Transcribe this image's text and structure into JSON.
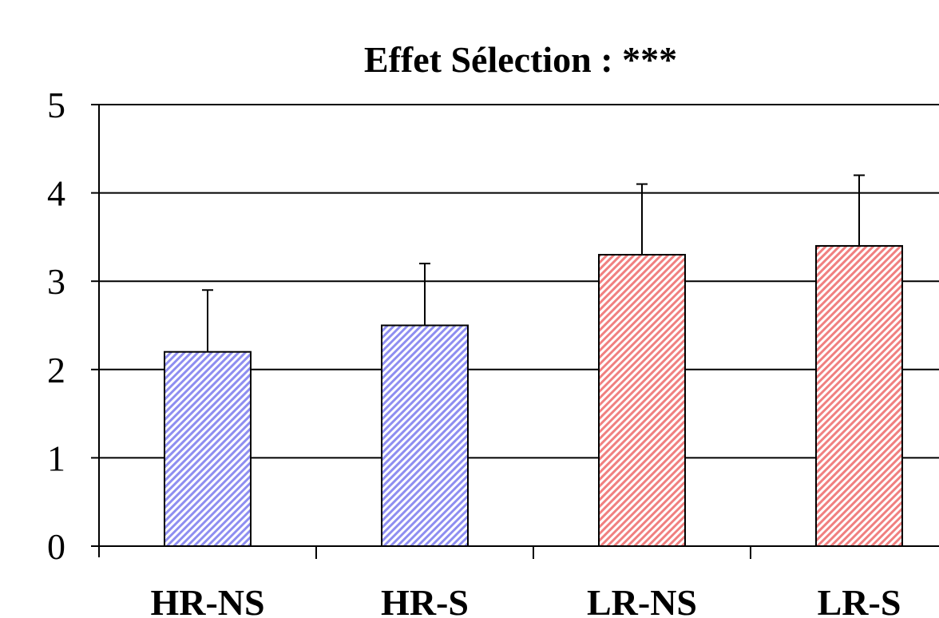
{
  "chart_data": {
    "type": "bar",
    "title": "Effet Sélection : ***",
    "xlabel": "",
    "ylabel": "",
    "categories": [
      "HR-NS",
      "HR-S",
      "LR-NS",
      "LR-S"
    ],
    "values": [
      2.2,
      2.5,
      3.3,
      3.4
    ],
    "error_plus": [
      0.7,
      0.7,
      0.8,
      0.8
    ],
    "ylim": [
      0,
      5
    ],
    "yticks": [
      "0",
      "1",
      "2",
      "3",
      "4",
      "5"
    ],
    "grid": true,
    "legend": "none",
    "colors": [
      "#8e8ef0",
      "#8e8ef0",
      "#f08080",
      "#f08080"
    ]
  }
}
